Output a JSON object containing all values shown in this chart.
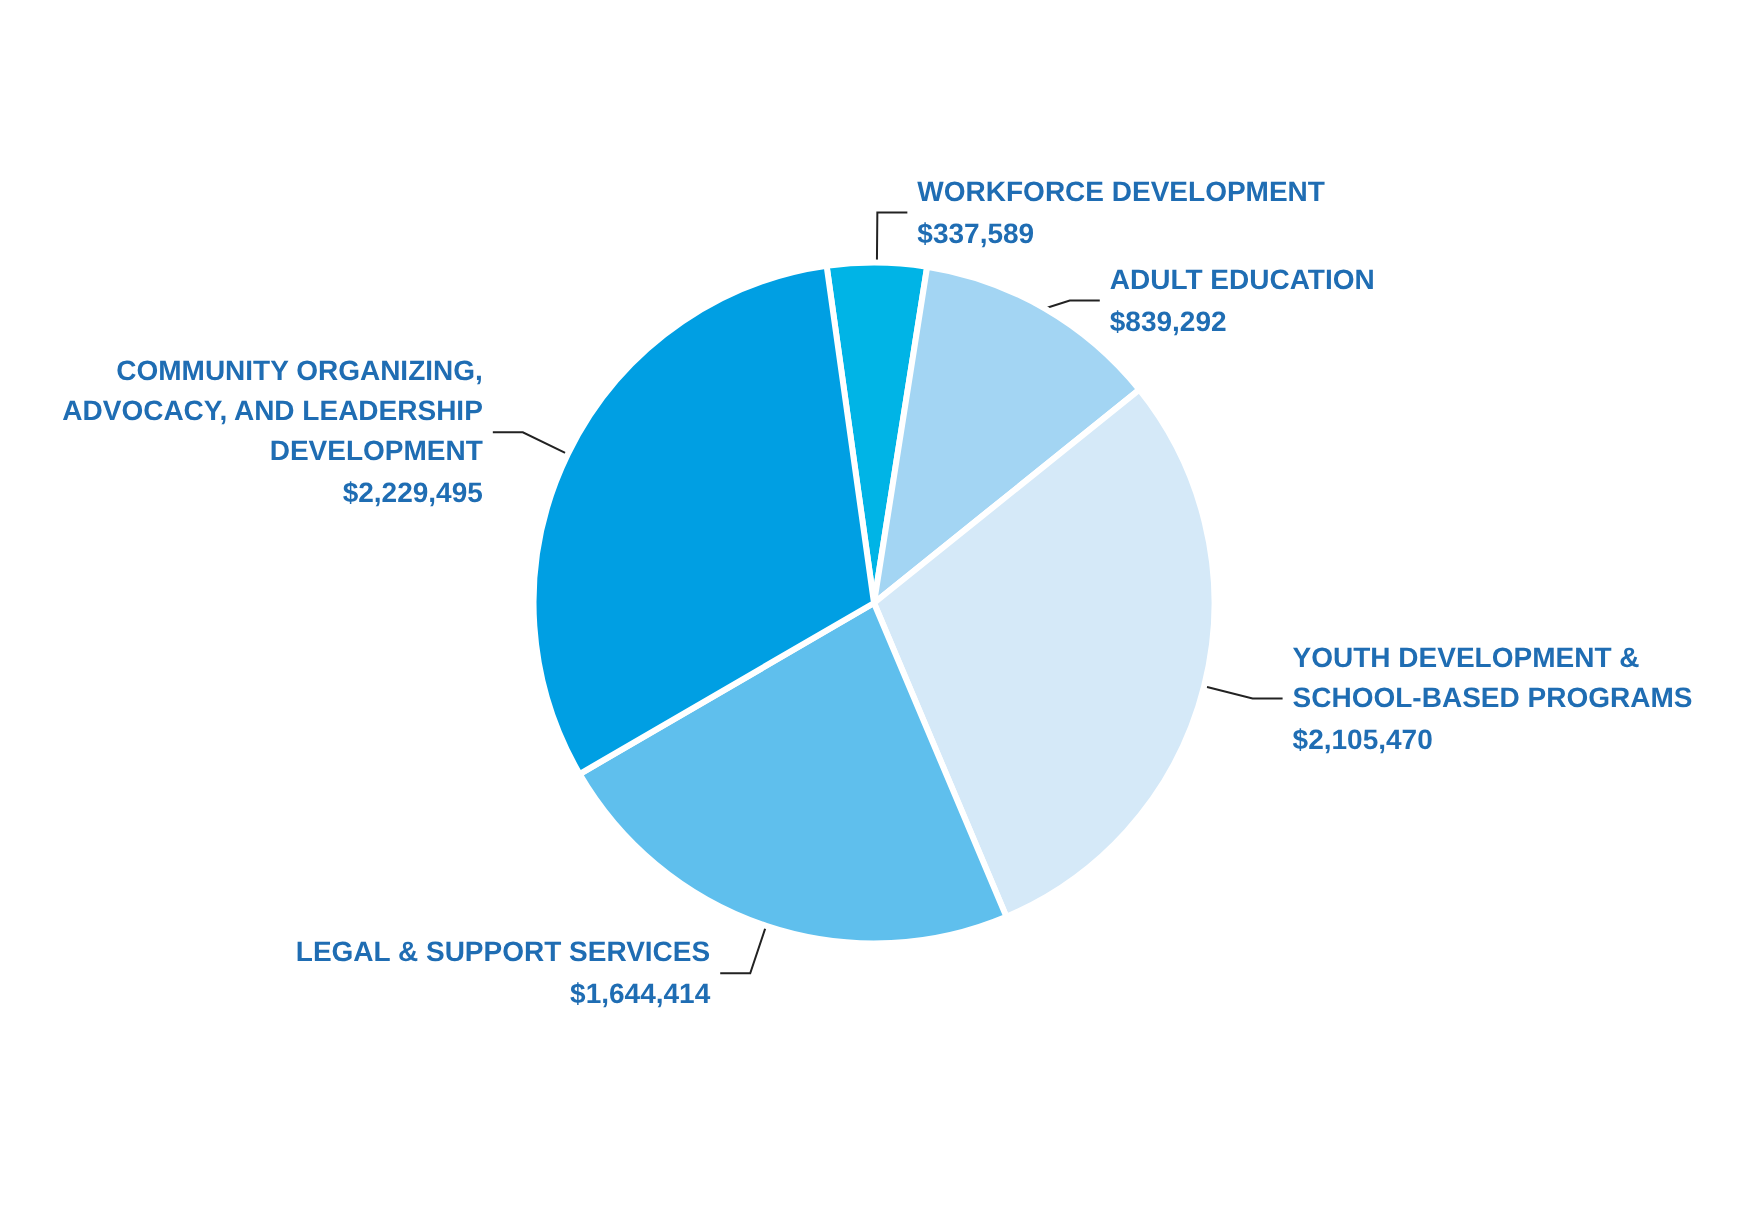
{
  "chart_data": {
    "type": "pie",
    "categories": [
      "WORKFORCE DEVELOPMENT",
      "ADULT EDUCATION",
      "YOUTH DEVELOPMENT & SCHOOL-BASED PROGRAMS",
      "LEGAL & SUPPORT SERVICES",
      "COMMUNITY ORGANIZING, ADVOCACY, AND LEADERSHIP DEVELOPMENT"
    ],
    "values": [
      337589,
      839292,
      2105470,
      1644414,
      2229495
    ],
    "value_labels": [
      "$337,589",
      "$839,292",
      "$2,105,470",
      "$1,644,414",
      "$2,229,495"
    ],
    "colors": [
      "#00b4e6",
      "#a3d5f3",
      "#d5e9f8",
      "#5fbfed",
      "#009fe3"
    ],
    "legend": false
  }
}
